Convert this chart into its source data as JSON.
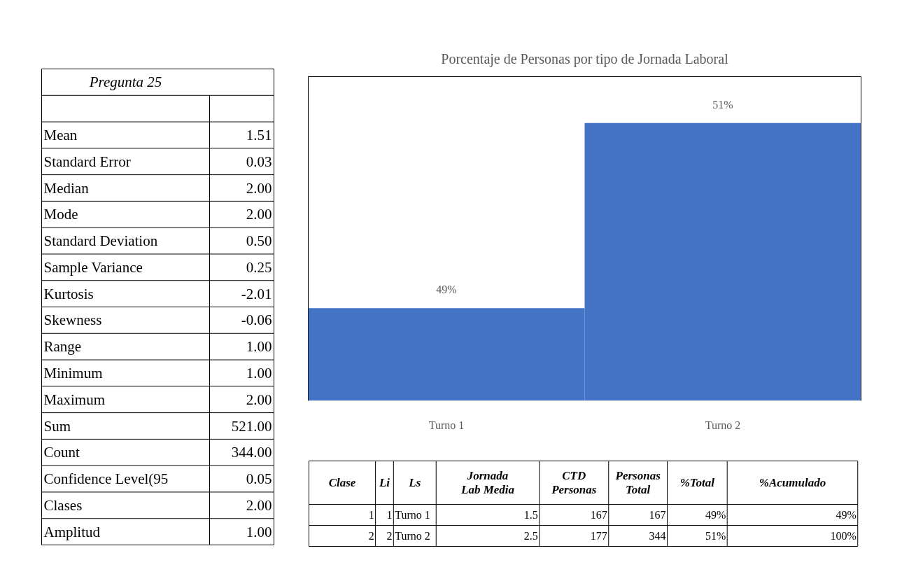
{
  "chart_data": [
    {
      "type": "other",
      "title": "Pregunta 25",
      "annotations": [
        "Mean",
        "1.51",
        "Standard Error",
        "0.03",
        "Median",
        "2.00",
        "Mode",
        "2.00",
        "Standard Deviation",
        "0.50",
        "Sample Variance",
        "0.25",
        "Kurtosis",
        "-2.01",
        "Skewness",
        "-0.06",
        "Range",
        "1.00",
        "Minimum",
        "1.00",
        "Maximum",
        "2.00",
        "Sum",
        "521.00",
        "Count",
        "344.00",
        "Confidence Level(95",
        "0.05",
        "Clases",
        "2.00",
        "Amplitud",
        "1.00"
      ]
    },
    {
      "type": "bar",
      "title": "Porcentaje de Personas por tipo de Jornada Laboral",
      "categories": [
        "Turno 1",
        "Turno 2"
      ],
      "values": [
        49,
        51
      ],
      "value_labels": [
        "49%",
        "51%"
      ],
      "color": "#4472c4",
      "ylim": [
        48,
        51.5
      ],
      "tick_labels": "x"
    },
    {
      "type": "other",
      "annotations": [
        "Clase",
        "Li",
        "Ls",
        "Jornada Lab Media",
        "CTD Personas",
        "Personas Total",
        "%Total",
        "%Acumulado",
        "1",
        "1",
        "Turno 1",
        "1.5",
        "167",
        "167",
        "49%",
        "49%",
        "2",
        "2",
        "Turno 2",
        "2.5",
        "177",
        "344",
        "51%",
        "100%"
      ]
    }
  ]
}
